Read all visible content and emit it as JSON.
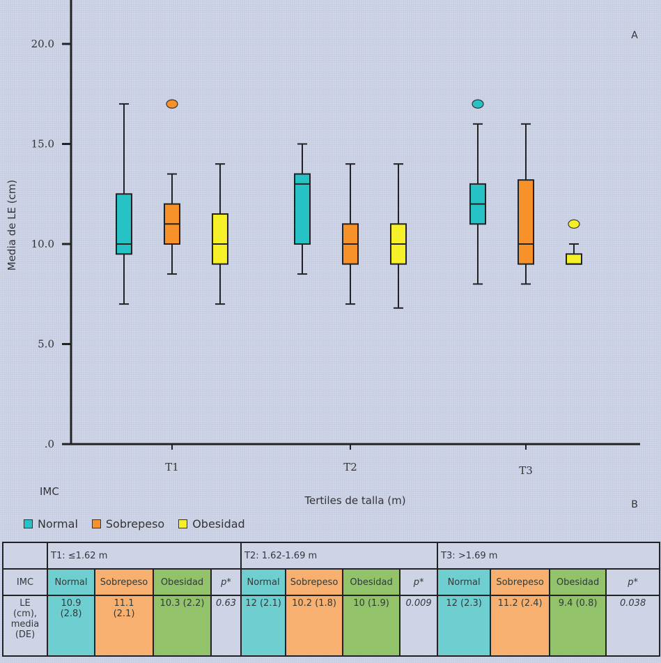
{
  "chart_data": {
    "type": "boxplot",
    "panel_label": "A",
    "ylabel": "Media de LE (cm)",
    "xlabel": "Tertiles de talla (m)",
    "ylim": [
      0,
      22
    ],
    "yticks": [
      0,
      5,
      10,
      15,
      20
    ],
    "ytick_labels": [
      ".0",
      "5.0",
      "10.0",
      "15.0",
      "20.0"
    ],
    "grid": false,
    "categories": [
      "T1",
      "T2",
      "T3"
    ],
    "legend_title": "IMC",
    "legend_position": "bottom-left",
    "series": [
      {
        "name": "Normal",
        "color": "#27c2c6",
        "boxes": [
          {
            "min": 7.0,
            "q1": 9.5,
            "median": 10.0,
            "q3": 12.5,
            "max": 17.0,
            "outliers": []
          },
          {
            "min": 8.5,
            "q1": 10.0,
            "median": 13.0,
            "q3": 13.5,
            "max": 15.0,
            "outliers": []
          },
          {
            "min": 8.0,
            "q1": 11.0,
            "median": 12.0,
            "q3": 13.0,
            "max": 16.0,
            "outliers": [
              17.0
            ]
          }
        ]
      },
      {
        "name": "Sobrepeso",
        "color": "#f7922a",
        "boxes": [
          {
            "min": 8.5,
            "q1": 10.0,
            "median": 11.0,
            "q3": 12.0,
            "max": 13.5,
            "outliers": [
              17.0
            ]
          },
          {
            "min": 7.0,
            "q1": 9.0,
            "median": 10.0,
            "q3": 11.0,
            "max": 14.0,
            "outliers": []
          },
          {
            "min": 8.0,
            "q1": 9.0,
            "median": 10.0,
            "q3": 13.2,
            "max": 16.0,
            "outliers": []
          }
        ]
      },
      {
        "name": "Obesidad",
        "color": "#f5f02a",
        "boxes": [
          {
            "min": 7.0,
            "q1": 9.0,
            "median": 10.0,
            "q3": 11.5,
            "max": 14.0,
            "outliers": []
          },
          {
            "min": 6.8,
            "q1": 9.0,
            "median": 10.0,
            "q3": 11.0,
            "max": 14.0,
            "outliers": []
          },
          {
            "min": 9.0,
            "q1": 9.0,
            "median": 9.0,
            "q3": 9.5,
            "max": 10.0,
            "outliers": [
              11.0
            ]
          }
        ]
      }
    ]
  },
  "table": {
    "panel_label": "B",
    "tercile_headers": [
      "T1: ≤1.62 m",
      "T2: 1.62-1.69 m",
      "T3: >1.69 m"
    ],
    "row_imc_label": "IMC",
    "group_headers": [
      "Normal",
      "Sobrepeso",
      "Obesidad",
      "p*"
    ],
    "row_le_label": [
      "LE",
      "(cm),",
      "media",
      "(DE)"
    ],
    "values": [
      {
        "normal": [
          "10.9",
          "(2.8)"
        ],
        "sobrepeso": [
          "11.1",
          "(2.1)"
        ],
        "obesidad": [
          "10.3 (2.2)"
        ],
        "p": "0.63"
      },
      {
        "normal": [
          "12 (2.1)"
        ],
        "sobrepeso": [
          "10.2 (1.8)"
        ],
        "obesidad": [
          "10 (1.9)"
        ],
        "p": "0.009"
      },
      {
        "normal": [
          "12 (2.3)"
        ],
        "sobrepeso": [
          "11.2 (2.4)"
        ],
        "obesidad": [
          "9.4 (0.8)"
        ],
        "p": "0.038"
      }
    ]
  }
}
